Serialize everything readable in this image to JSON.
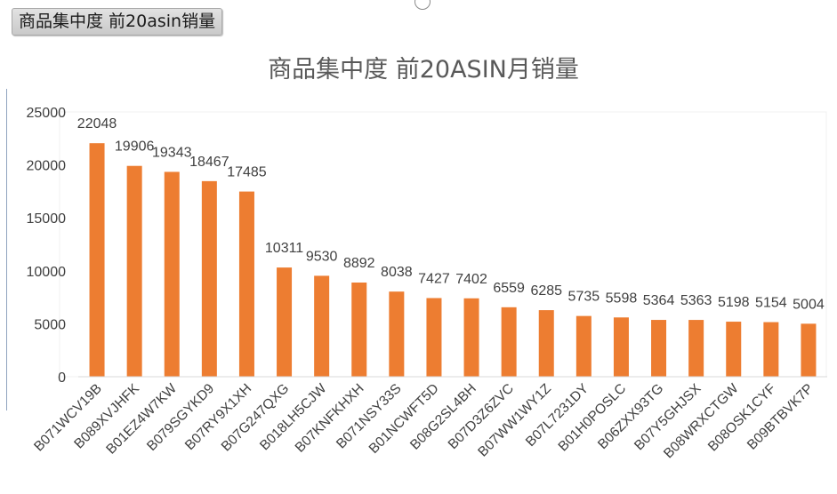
{
  "sheet_tab": {
    "label": "商品集中度 前20asin销量"
  },
  "chart_data": {
    "type": "bar",
    "title": "商品集中度 前20ASIN月销量",
    "xlabel": "",
    "ylabel": "",
    "ylim": [
      0,
      25000
    ],
    "yticks": [
      0,
      5000,
      10000,
      15000,
      20000,
      25000
    ],
    "grid": false,
    "legend": "none",
    "bar_color": "#ED7D31",
    "categories": [
      "B071WCV19B",
      "B089XVJHFK",
      "B01EZ4W7KW",
      "B079SGYKD9",
      "B07RY9X1XH",
      "B07G247QXG",
      "B018LH5CJW",
      "B07KNFKHXH",
      "B071NSY33S",
      "B01NCWFT5D",
      "B08G2SL4BH",
      "B07D3Z6ZVC",
      "B07WW1WY1Z",
      "B07L7231DY",
      "B01H0POSLC",
      "B06ZXX93TG",
      "B07Y5GHJSX",
      "B08WRXCTGW",
      "B08OSK1CYF",
      "B09BTBVK7P"
    ],
    "values": [
      22048,
      19906,
      19343,
      18467,
      17485,
      10311,
      9530,
      8892,
      8038,
      7427,
      7402,
      6559,
      6285,
      5735,
      5598,
      5364,
      5363,
      5198,
      5154,
      5004
    ]
  }
}
